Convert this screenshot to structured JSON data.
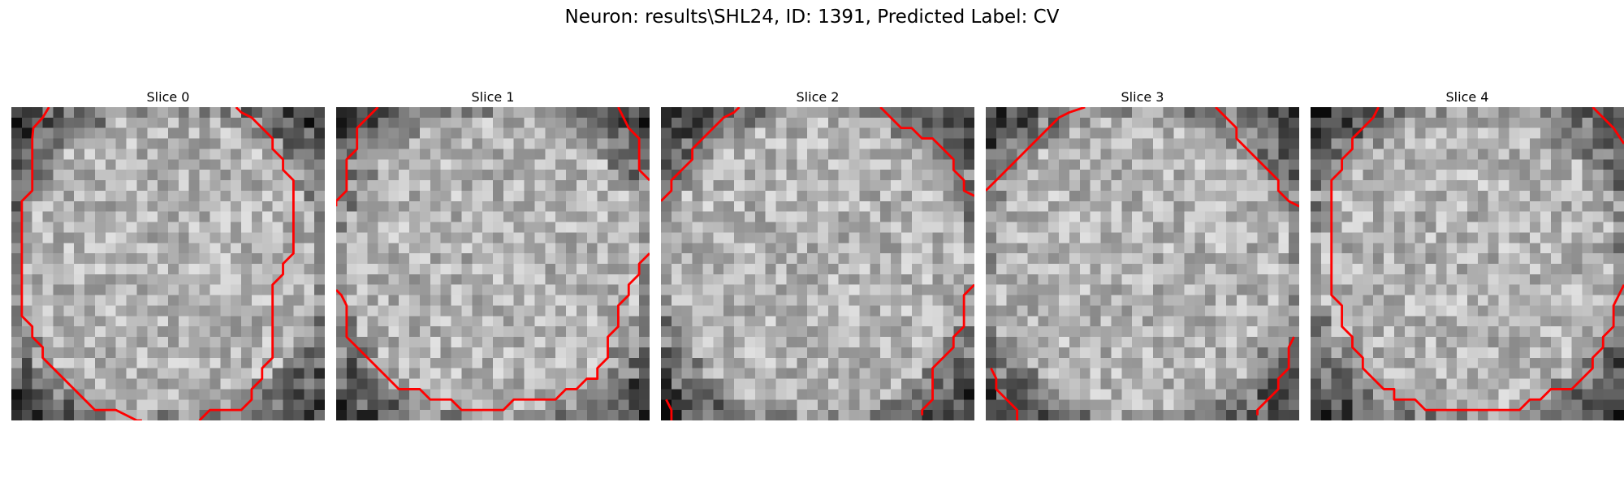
{
  "figure": {
    "title": "Neuron: results\\SHL24, ID: 1391, Predicted Label: CV"
  },
  "chart_data": [
    {
      "type": "heatmap",
      "title": "Slice 0",
      "colormap": "gray",
      "grid_size": [
        30,
        30
      ],
      "contour_color": "#ff0000",
      "contours": [
        [
          [
            3.6,
            0
          ],
          [
            3.0,
            1
          ],
          [
            2.1,
            2
          ],
          [
            2,
            3
          ],
          [
            2,
            8
          ],
          [
            1,
            9
          ],
          [
            1,
            20
          ],
          [
            2,
            21
          ],
          [
            2,
            22
          ],
          [
            3,
            23
          ],
          [
            3,
            24
          ],
          [
            4,
            25
          ],
          [
            5,
            26
          ],
          [
            6,
            27
          ],
          [
            7,
            28
          ],
          [
            8,
            29
          ],
          [
            10,
            29
          ],
          [
            12,
            30
          ],
          [
            12.5,
            30
          ]
        ],
        [
          [
            21.5,
            0
          ],
          [
            22,
            0.5
          ],
          [
            23,
            1
          ],
          [
            24,
            2
          ],
          [
            25,
            3
          ],
          [
            25,
            4
          ],
          [
            26,
            5
          ],
          [
            26,
            6
          ],
          [
            27,
            7
          ],
          [
            27,
            14
          ],
          [
            26,
            15
          ],
          [
            26,
            16
          ],
          [
            25,
            17
          ],
          [
            25,
            18
          ],
          [
            25,
            24
          ],
          [
            24,
            25
          ],
          [
            24,
            26
          ],
          [
            23,
            27
          ],
          [
            23,
            28
          ],
          [
            22,
            29
          ],
          [
            21,
            29
          ],
          [
            19,
            29
          ],
          [
            18,
            30
          ]
        ]
      ]
    },
    {
      "type": "heatmap",
      "title": "Slice 1",
      "colormap": "gray",
      "grid_size": [
        30,
        30
      ],
      "contour_color": "#ff0000",
      "contours": [
        [
          [
            4,
            0
          ],
          [
            3,
            1
          ],
          [
            2,
            2
          ],
          [
            2,
            4
          ],
          [
            1,
            5
          ],
          [
            1,
            8
          ],
          [
            0,
            9
          ],
          [
            0,
            9.5
          ]
        ],
        [
          [
            0,
            17.5
          ],
          [
            0.5,
            18
          ],
          [
            1,
            19
          ],
          [
            1,
            22
          ],
          [
            2,
            23
          ],
          [
            3,
            24
          ],
          [
            4,
            25
          ],
          [
            5,
            26
          ],
          [
            6,
            27
          ],
          [
            8,
            27
          ],
          [
            9,
            28
          ],
          [
            11,
            28
          ],
          [
            12,
            29
          ],
          [
            16,
            29
          ],
          [
            17,
            28
          ],
          [
            21,
            28
          ],
          [
            22,
            27
          ],
          [
            23,
            27
          ],
          [
            24,
            26
          ],
          [
            25,
            26
          ],
          [
            25,
            25
          ],
          [
            26,
            24
          ],
          [
            26,
            22
          ],
          [
            27,
            21
          ],
          [
            27,
            19
          ],
          [
            28,
            18
          ],
          [
            28,
            17
          ],
          [
            29,
            16
          ],
          [
            29,
            15
          ],
          [
            30,
            14
          ]
        ],
        [
          [
            27,
            0
          ],
          [
            27.5,
            1
          ],
          [
            28,
            2
          ],
          [
            29,
            3
          ],
          [
            29,
            6
          ],
          [
            30,
            7
          ]
        ]
      ]
    },
    {
      "type": "heatmap",
      "title": "Slice 2",
      "colormap": "gray",
      "grid_size": [
        30,
        30
      ],
      "contour_color": "#ff0000",
      "contours": [
        [
          [
            7.5,
            0
          ],
          [
            7,
            0.5
          ],
          [
            6,
            1
          ],
          [
            5,
            2
          ],
          [
            4,
            3
          ],
          [
            3,
            4
          ],
          [
            3,
            5
          ],
          [
            2,
            6
          ],
          [
            1,
            7
          ],
          [
            1,
            8
          ],
          [
            0,
            9
          ]
        ],
        [
          [
            21,
            0
          ],
          [
            22,
            1
          ],
          [
            23,
            2
          ],
          [
            24,
            2
          ],
          [
            25,
            3
          ],
          [
            26,
            3
          ],
          [
            27,
            4
          ],
          [
            28,
            5
          ],
          [
            28,
            6
          ],
          [
            29,
            7
          ],
          [
            29,
            8
          ],
          [
            30,
            8.5
          ]
        ],
        [
          [
            30,
            17
          ],
          [
            29,
            18
          ],
          [
            29,
            21
          ],
          [
            28,
            22
          ],
          [
            28,
            23
          ],
          [
            27,
            24
          ],
          [
            26,
            25
          ],
          [
            26,
            28
          ],
          [
            25,
            29
          ],
          [
            25,
            29.5
          ]
        ],
        [
          [
            0.5,
            28
          ],
          [
            1,
            29
          ],
          [
            1,
            30
          ]
        ]
      ]
    },
    {
      "type": "heatmap",
      "title": "Slice 3",
      "colormap": "gray",
      "grid_size": [
        30,
        30
      ],
      "contour_color": "#ff0000",
      "contours": [
        [
          [
            9.5,
            0
          ],
          [
            8,
            0.5
          ],
          [
            7,
            1
          ],
          [
            6,
            2
          ],
          [
            5,
            3
          ],
          [
            4,
            4
          ],
          [
            3,
            5
          ],
          [
            2,
            6
          ],
          [
            1,
            7
          ],
          [
            0,
            8
          ]
        ],
        [
          [
            22,
            0
          ],
          [
            23,
            1
          ],
          [
            24,
            2
          ],
          [
            24,
            3
          ],
          [
            25,
            4
          ],
          [
            26,
            5
          ],
          [
            27,
            6
          ],
          [
            28,
            7
          ],
          [
            28,
            8
          ],
          [
            29,
            9
          ],
          [
            30,
            9.5
          ]
        ],
        [
          [
            29.5,
            22
          ],
          [
            29,
            23
          ],
          [
            29,
            25
          ],
          [
            28,
            26
          ],
          [
            28,
            27
          ],
          [
            27,
            28
          ],
          [
            26,
            29
          ],
          [
            26,
            29.5
          ]
        ],
        [
          [
            0.5,
            25
          ],
          [
            1,
            26
          ],
          [
            1,
            27
          ],
          [
            2,
            28
          ],
          [
            3,
            29
          ],
          [
            3,
            30
          ]
        ]
      ]
    },
    {
      "type": "heatmap",
      "title": "Slice 4",
      "colormap": "gray",
      "grid_size": [
        30,
        30
      ],
      "contour_color": "#ff0000",
      "contours": [
        [
          [
            6.5,
            0
          ],
          [
            6,
            1
          ],
          [
            5,
            2
          ],
          [
            4,
            3
          ],
          [
            4,
            4
          ],
          [
            3,
            5
          ],
          [
            3,
            6
          ],
          [
            2,
            7
          ],
          [
            2,
            12
          ],
          [
            2,
            18
          ],
          [
            3,
            19
          ],
          [
            3,
            21
          ],
          [
            4,
            22
          ],
          [
            4,
            23
          ],
          [
            5,
            24
          ],
          [
            5,
            25
          ],
          [
            6,
            26
          ],
          [
            7,
            27
          ],
          [
            8,
            27
          ],
          [
            8,
            28
          ],
          [
            9,
            28
          ],
          [
            10,
            28
          ],
          [
            11,
            29
          ],
          [
            20,
            29
          ],
          [
            21,
            28
          ],
          [
            22,
            28
          ],
          [
            23,
            27
          ],
          [
            25,
            27
          ],
          [
            26,
            26
          ],
          [
            27,
            25
          ],
          [
            27,
            24
          ],
          [
            28,
            23
          ],
          [
            28,
            22
          ],
          [
            29,
            21
          ],
          [
            29,
            20
          ],
          [
            29,
            19
          ],
          [
            30,
            17
          ]
        ],
        [
          [
            27,
            0
          ],
          [
            28,
            1
          ],
          [
            29,
            2
          ],
          [
            30,
            3.5
          ]
        ]
      ]
    }
  ]
}
